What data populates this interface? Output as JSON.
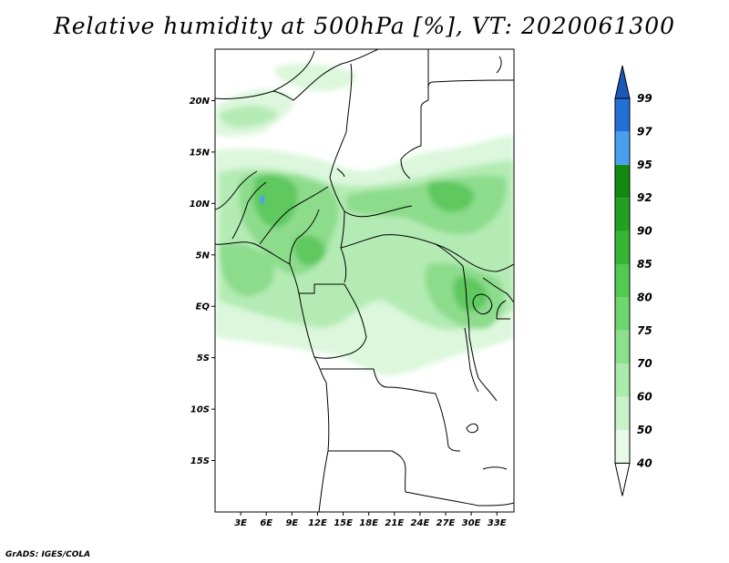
{
  "title": "Relative humidity at 500hPa [%], VT: 2020061300",
  "credit": "GrADS: IGES/COLA",
  "map": {
    "lon_range": [
      0,
      35
    ],
    "lat_range": [
      -20,
      25
    ],
    "lat_ticks": [
      "20N",
      "15N",
      "10N",
      "5N",
      "EQ",
      "5S",
      "10S",
      "15S"
    ],
    "lon_ticks": [
      "3E",
      "6E",
      "9E",
      "12E",
      "15E",
      "18E",
      "21E",
      "24E",
      "27E",
      "30E",
      "33E"
    ]
  },
  "colorbar": {
    "labels": [
      "99",
      "97",
      "95",
      "92",
      "90",
      "85",
      "80",
      "75",
      "70",
      "60",
      "50",
      "40"
    ],
    "colors": [
      "#ffffff",
      "#e6fae6",
      "#c8f2c8",
      "#aaeaaa",
      "#8ce08c",
      "#6ed66e",
      "#50ca50",
      "#34b634",
      "#22a022",
      "#128a12",
      "#4aa0f0",
      "#2070d8",
      "#1c58b8"
    ]
  },
  "fill_colors": {
    "light": "#dcf7dc",
    "medium": "#b4ebb4",
    "strong": "#8cdc8c",
    "dark": "#5ec85e",
    "peak_blue": "#4aa0f0"
  }
}
